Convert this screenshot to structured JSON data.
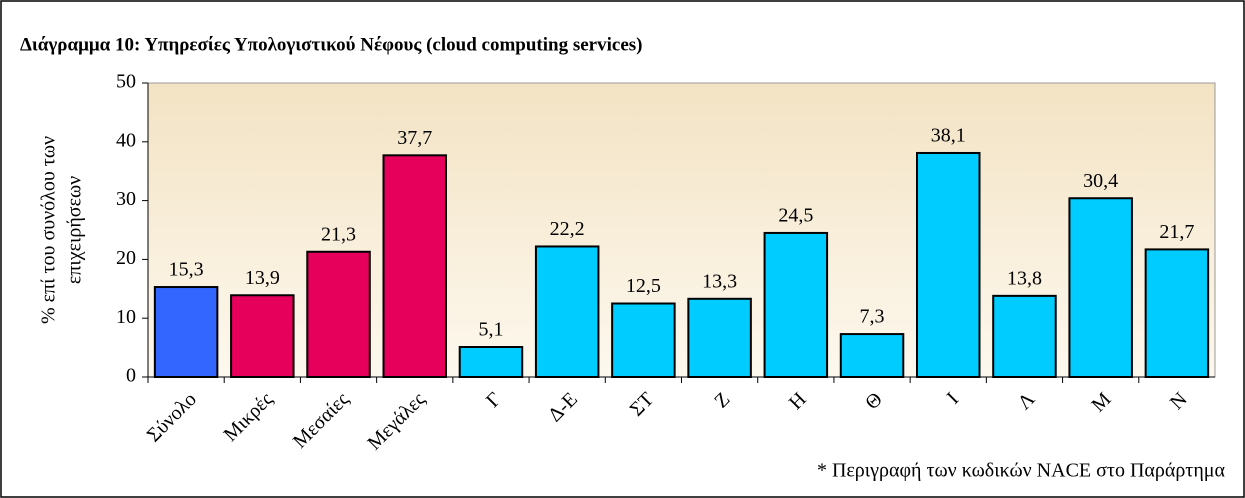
{
  "chart_data": {
    "type": "bar",
    "title": "Διάγραμμα 10: Υπηρεσίες Υπολογιστικού Νέφους (cloud computing services)",
    "ylabel": [
      "% επί του συνόλου των",
      "επιχειρήσεων"
    ],
    "note": "* Περιγραφή των κωδικών NACE στο Παράρτημα",
    "categories": [
      "Σύνολο",
      "Μικρές",
      "Μεσαίες",
      "Μεγάλες",
      "Γ",
      "Δ-Ε",
      "ΣΤ",
      "Ζ",
      "Η",
      "Θ",
      "Ι",
      "Λ",
      "Μ",
      "Ν"
    ],
    "values": [
      15.3,
      13.9,
      21.3,
      37.7,
      5.1,
      22.2,
      12.5,
      13.3,
      24.5,
      7.3,
      38.1,
      13.8,
      30.4,
      21.7
    ],
    "value_labels": [
      "15,3",
      "13,9",
      "21,3",
      "37,7",
      "5,1",
      "22,2",
      "12,5",
      "13,3",
      "24,5",
      "7,3",
      "38,1",
      "13,8",
      "30,4",
      "21,7"
    ],
    "colors": [
      "#3366ff",
      "#e6005c",
      "#e6005c",
      "#e6005c",
      "#00ccff",
      "#00ccff",
      "#00ccff",
      "#00ccff",
      "#00ccff",
      "#00ccff",
      "#00ccff",
      "#00ccff",
      "#00ccff",
      "#00ccff"
    ],
    "ylim": [
      0,
      50
    ],
    "yticks": [
      0,
      10,
      20,
      30,
      40,
      50
    ],
    "grid": false
  }
}
